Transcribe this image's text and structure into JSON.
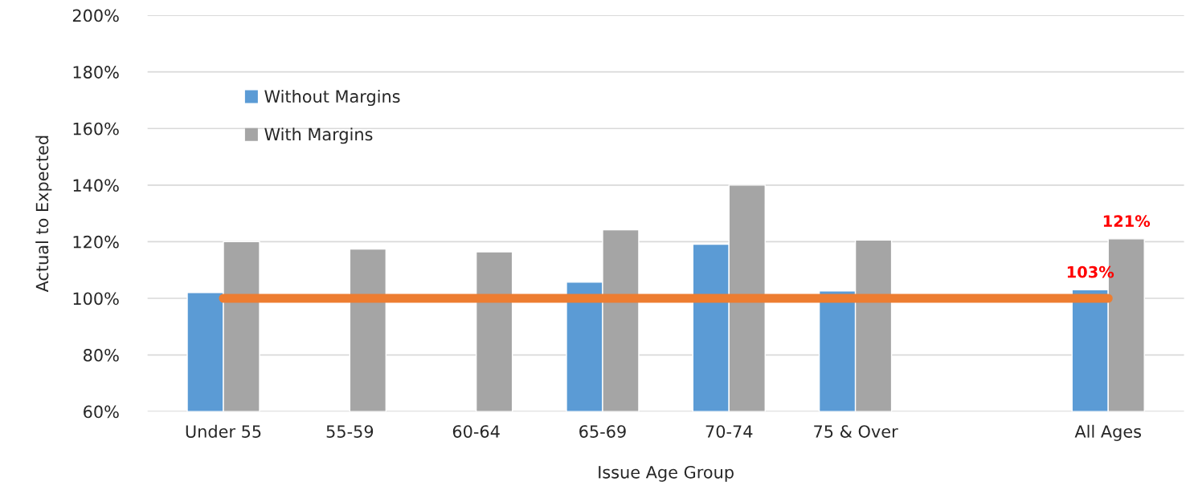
{
  "chart_data": {
    "type": "bar",
    "xlabel": "Issue Age Group",
    "ylabel": "Actual to Expected",
    "categories": [
      "Under 55",
      "55-59",
      "60-64",
      "65-69",
      "70-74",
      "75 & Over",
      null,
      "All Ages"
    ],
    "series": [
      {
        "name": "Without Margins",
        "color": "#5b9bd5",
        "values": [
          102,
          null,
          null,
          105.7,
          119.1,
          102.6,
          null,
          103
        ],
        "value_labels": [
          null,
          null,
          null,
          null,
          null,
          null,
          null,
          "103%"
        ]
      },
      {
        "name": "With Margins",
        "color": "#a5a5a5",
        "values": [
          120,
          117.4,
          116.4,
          124.2,
          140,
          120.6,
          null,
          121
        ],
        "value_labels": [
          null,
          null,
          null,
          null,
          null,
          null,
          null,
          "121%"
        ]
      },
      {
        "type": "line",
        "color": "#ed7d31",
        "values": [
          100,
          100,
          100,
          100,
          100,
          100,
          100,
          100
        ]
      }
    ],
    "ylim": [
      60,
      200
    ],
    "yticks": [
      {
        "value": 60,
        "label": "60%"
      },
      {
        "value": 80,
        "label": "80%"
      },
      {
        "value": 100,
        "label": "100%"
      },
      {
        "value": 120,
        "label": "120%"
      },
      {
        "value": 140,
        "label": "140%"
      },
      {
        "value": 160,
        "label": "160%"
      },
      {
        "value": 180,
        "label": "180%"
      },
      {
        "value": 200,
        "label": "200%"
      }
    ],
    "grid": "y",
    "legend": "top left"
  }
}
